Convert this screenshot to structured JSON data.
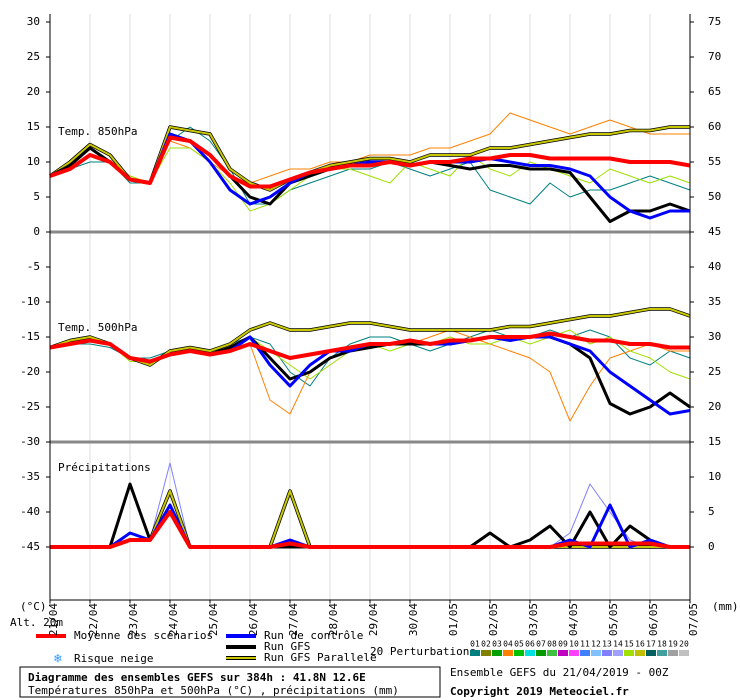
{
  "chart_data": {
    "type": "line",
    "xlabel_left": "(°C)",
    "xlabel_right": "(mm)",
    "altitude": "Alt. 20m",
    "annotations": [
      "Temp. 850hPa",
      "Temp. 500hPa",
      "Précipitations"
    ],
    "x": [
      0,
      12,
      24,
      36,
      48,
      60,
      72,
      84,
      96,
      108,
      120,
      132,
      144,
      156,
      168,
      180,
      192,
      204,
      216,
      228,
      240,
      252,
      264,
      276,
      288,
      300,
      312,
      324,
      336,
      348,
      360,
      372,
      384
    ],
    "xlim": [
      0,
      384
    ],
    "xticks": [
      {
        "value": 0,
        "label": "21/04"
      },
      {
        "value": 24,
        "label": "22/04"
      },
      {
        "value": 48,
        "label": "23/04"
      },
      {
        "value": 72,
        "label": "24/04"
      },
      {
        "value": 96,
        "label": "25/04"
      },
      {
        "value": 120,
        "label": "26/04"
      },
      {
        "value": 144,
        "label": "27/04"
      },
      {
        "value": 168,
        "label": "28/04"
      },
      {
        "value": 192,
        "label": "29/04"
      },
      {
        "value": 216,
        "label": "30/04"
      },
      {
        "value": 240,
        "label": "01/05"
      },
      {
        "value": 264,
        "label": "02/05"
      },
      {
        "value": 288,
        "label": "03/05"
      },
      {
        "value": 312,
        "label": "04/05"
      },
      {
        "value": 336,
        "label": "05/05"
      },
      {
        "value": 360,
        "label": "06/05"
      },
      {
        "value": 384,
        "label": "07/05"
      }
    ],
    "ylim": [
      -52.5,
      30
    ],
    "yticks": [
      30,
      25,
      20,
      15,
      10,
      5,
      0,
      -5,
      -10,
      -15,
      -20,
      -25,
      -30,
      -35,
      -40,
      -45
    ],
    "y2lim": [
      -7.5,
      75
    ],
    "y2ticks": [
      75,
      70,
      65,
      60,
      55,
      50,
      45,
      40,
      35,
      30,
      25,
      20,
      15,
      10,
      5,
      0
    ],
    "grid": true,
    "series": [
      {
        "name": "Moyenne des scénarios",
        "color": "#ff0000",
        "t850": [
          8,
          9,
          11,
          10,
          7.5,
          7,
          13.5,
          13,
          11,
          8,
          6.5,
          6.5,
          7.5,
          8.5,
          9,
          9.5,
          9.5,
          10,
          9.5,
          10,
          10,
          10.5,
          10.5,
          11,
          11,
          10.5,
          10.5,
          10.5,
          10.5,
          10,
          10,
          10,
          9.5
        ],
        "t500": [
          -16.5,
          -16,
          -15.5,
          -16,
          -18,
          -18.5,
          -17.5,
          -17,
          -17.5,
          -17,
          -16,
          -17,
          -18,
          -17.5,
          -17,
          -16.5,
          -16,
          -16,
          -15.5,
          -16,
          -15.5,
          -15.5,
          -15,
          -15,
          -15,
          -14.5,
          -15,
          -15.5,
          -15.5,
          -16,
          -16,
          -16.5,
          -16.5
        ],
        "precip": [
          0,
          0,
          0,
          0,
          1,
          1,
          5,
          0,
          0,
          0,
          0,
          0,
          0.5,
          0,
          0,
          0,
          0,
          0,
          0,
          0,
          0,
          0,
          0,
          0,
          0,
          0,
          0.5,
          0.5,
          0.5,
          0.5,
          0.5,
          0,
          0
        ]
      },
      {
        "name": "Run de contrôle",
        "color": "#0000ff",
        "t850": [
          8,
          9,
          11,
          10,
          7.5,
          7,
          14,
          13,
          10,
          6,
          4,
          5,
          7,
          8.5,
          9,
          9.5,
          10,
          10,
          9.5,
          10,
          10,
          10,
          10.5,
          10,
          9.5,
          9.5,
          9,
          8,
          5,
          3,
          2,
          3,
          3
        ],
        "t500": [
          -16.5,
          -16,
          -15.5,
          -16,
          -18,
          -18.5,
          -17.5,
          -17,
          -17.5,
          -17,
          -15,
          -19,
          -22,
          -19,
          -17,
          -17,
          -16,
          -16,
          -15.5,
          -16,
          -16,
          -15.5,
          -15,
          -15.5,
          -15,
          -15,
          -16,
          -17,
          -20,
          -22,
          -24,
          -26,
          -25.5
        ],
        "precip": [
          0,
          0,
          0,
          0,
          2,
          1,
          6,
          0,
          0,
          0,
          0,
          0,
          1,
          0,
          0,
          0,
          0,
          0,
          0,
          0,
          0,
          0,
          0,
          0,
          0,
          0,
          1,
          0,
          6,
          0,
          1,
          0,
          0
        ]
      },
      {
        "name": "Run GFS",
        "color": "#000000",
        "t850": [
          8,
          9.5,
          12,
          10,
          7.5,
          7,
          14,
          13,
          11,
          8,
          5,
          4,
          7,
          8,
          9,
          9.5,
          10,
          10,
          9.5,
          10,
          9.5,
          9,
          9.5,
          9.5,
          9,
          9,
          8.5,
          5,
          1.5,
          3,
          3,
          4,
          3
        ],
        "t500": [
          -16.5,
          -16,
          -15.5,
          -16,
          -18,
          -18.5,
          -17.5,
          -17,
          -17.5,
          -16.5,
          -15,
          -18,
          -21,
          -20,
          -18,
          -17,
          -16.5,
          -16,
          -16,
          -16,
          -16,
          -15.5,
          -15,
          -15,
          -15,
          -15,
          -16,
          -18,
          -24.5,
          -26,
          -25,
          -23,
          -25
        ],
        "precip": [
          0,
          0,
          0,
          0,
          9,
          1,
          5,
          0,
          0,
          0,
          0,
          0,
          0,
          0,
          0,
          0,
          0,
          0,
          0,
          0,
          0,
          0,
          2,
          0,
          1,
          3,
          0,
          5,
          0,
          3,
          1,
          0,
          0
        ]
      },
      {
        "name": "Run GFS Parallele",
        "color": "#c8c800",
        "t850": [
          8,
          10,
          12.5,
          11,
          7.5,
          7,
          15,
          14.5,
          14,
          9,
          7,
          6,
          7.5,
          8.5,
          9.5,
          10,
          10.5,
          10.5,
          10,
          11,
          11,
          11,
          12,
          12,
          12.5,
          13,
          13.5,
          14,
          14,
          14.5,
          14.5,
          15,
          15
        ],
        "t500": [
          -16.5,
          -15.5,
          -15,
          -16,
          -18,
          -19,
          -17,
          -16.5,
          -17,
          -16,
          -14,
          -13,
          -14,
          -14,
          -13.5,
          -13,
          -13,
          -13.5,
          -14,
          -14,
          -14,
          -14,
          -14,
          -13.5,
          -13.5,
          -13,
          -12.5,
          -12,
          -12,
          -11.5,
          -11,
          -11,
          -12
        ],
        "precip": [
          0,
          0,
          0,
          0,
          1,
          1,
          8,
          0,
          0,
          0,
          0,
          0,
          8,
          0,
          0,
          0,
          0,
          0,
          0,
          0,
          0,
          0,
          0,
          0,
          0,
          0,
          0,
          0,
          0,
          0,
          0,
          0,
          0
        ]
      }
    ],
    "snow_legend": "Risque neige",
    "perturbations": {
      "label": "20 Perturbations",
      "members": [
        {
          "label": "01",
          "color": "#007f7f",
          "t850": [
            8,
            9,
            10,
            10,
            7,
            7,
            13,
            15,
            13,
            9,
            4,
            4,
            6,
            7,
            8,
            9,
            9,
            10,
            9,
            8,
            9,
            10,
            6,
            5,
            4,
            7,
            5,
            6,
            6,
            7,
            8,
            7,
            6
          ],
          "t500": [
            -16.5,
            -16,
            -16,
            -16.5,
            -18,
            -18,
            -17,
            -17,
            -17.5,
            -16,
            -15,
            -16,
            -20,
            -22,
            -18,
            -16,
            -15,
            -15,
            -16,
            -17,
            -16,
            -15,
            -14,
            -15,
            -15,
            -14,
            -15,
            -14,
            -15,
            -18,
            -19,
            -17,
            -18
          ]
        },
        {
          "label": "02",
          "color": "#7f7f00"
        },
        {
          "label": "03",
          "color": "#00a000"
        },
        {
          "label": "04",
          "color": "#ff8000",
          "t850": [
            8,
            9,
            11,
            10,
            8,
            7,
            13,
            12,
            10,
            8,
            7,
            8,
            9,
            9,
            10,
            10,
            11,
            11,
            11,
            12,
            12,
            13,
            14,
            17,
            16,
            15,
            14,
            15,
            16,
            15,
            14,
            14,
            14
          ],
          "t500": [
            -16.5,
            -16,
            -15.5,
            -16,
            -18,
            -19,
            -17.5,
            -17,
            -17.5,
            -17,
            -16,
            -24,
            -26,
            -20,
            -18,
            -17,
            -16,
            -16,
            -16,
            -15,
            -14,
            -15,
            -16,
            -17,
            -18,
            -20,
            -27,
            -22,
            -18,
            -17,
            -16,
            -17,
            -17
          ]
        },
        {
          "label": "05",
          "color": "#00c000"
        },
        {
          "label": "06",
          "color": "#00e0e0"
        },
        {
          "label": "07",
          "color": "#009900"
        },
        {
          "label": "08",
          "color": "#40c040"
        },
        {
          "label": "09",
          "color": "#c000c0"
        },
        {
          "label": "10",
          "color": "#ff40ff"
        },
        {
          "label": "11",
          "color": "#4080ff"
        },
        {
          "label": "12",
          "color": "#80c0ff"
        },
        {
          "label": "13",
          "color": "#8080ff",
          "precip": [
            0,
            0,
            0,
            0,
            2,
            1,
            12,
            0,
            0,
            0,
            0,
            0,
            0,
            0,
            0,
            0,
            0,
            0,
            0,
            0,
            0,
            0,
            0,
            0,
            0,
            0,
            2,
            9,
            5,
            1,
            0,
            0,
            0
          ]
        },
        {
          "label": "14",
          "color": "#a0a0ff"
        },
        {
          "label": "15",
          "color": "#a0e000",
          "t850": [
            8,
            9,
            11,
            10,
            8,
            7,
            12,
            12,
            10,
            7,
            3,
            4,
            6,
            8,
            9,
            9,
            8,
            7,
            10,
            9,
            8,
            11,
            9,
            8,
            10,
            9,
            8,
            7,
            9,
            8,
            7,
            8,
            7
          ],
          "t500": [
            -16.5,
            -16,
            -15.5,
            -16,
            -18.5,
            -18.5,
            -17.5,
            -17,
            -17.5,
            -17,
            -15,
            -17,
            -19,
            -21,
            -19,
            -17,
            -16,
            -17,
            -16,
            -16,
            -15,
            -16,
            -16,
            -15,
            -16,
            -15,
            -14,
            -16,
            -15,
            -17,
            -18,
            -20,
            -21
          ]
        },
        {
          "label": "16",
          "color": "#c0c000"
        },
        {
          "label": "17",
          "color": "#006060"
        },
        {
          "label": "18",
          "color": "#40a0a0"
        },
        {
          "label": "19",
          "color": "#a0a0a0"
        },
        {
          "label": "20",
          "color": "#c0c0c0"
        }
      ]
    },
    "footer": {
      "title": "Diagramme des ensembles GEFS sur 384h : 41.8N 12.6E",
      "subtitle": "Températures 850hPa et 500hPa (°C) , précipitations (mm)",
      "run": "Ensemble GEFS du 21/04/2019 - 00Z",
      "copyright": "Copyright 2019 Meteociel.fr"
    }
  }
}
